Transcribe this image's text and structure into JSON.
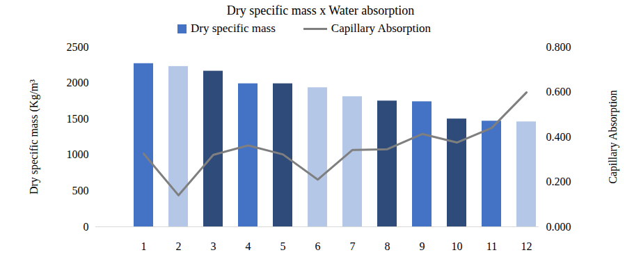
{
  "chart_data": {
    "type": "bar",
    "title": "Dry specific mass x Water absorption",
    "categories": [
      null,
      "1",
      "2",
      "3",
      "4",
      "5",
      "6",
      "7",
      "8",
      "9",
      "10",
      "11",
      "12"
    ],
    "series": [
      {
        "name": "Dry specific mass",
        "type": "bar",
        "color": "#4472C4",
        "colors": [
          null,
          "#4472C4",
          "#B4C7E7",
          "#2E4B7A",
          "#4472C4",
          "#2E4B7A",
          "#B4C7E7",
          "#B4C7E7",
          "#2E4B7A",
          "#4472C4",
          "#2E4B7A",
          "#4472C4",
          "#B4C7E7"
        ],
        "values": [
          null,
          2270,
          2230,
          2165,
          1990,
          1990,
          1935,
          1810,
          1750,
          1740,
          1500,
          1470,
          1460
        ]
      },
      {
        "name": "Capillary Absorption",
        "type": "line",
        "axis": "y2",
        "color": "#7F7F7F",
        "values": [
          null,
          0.325,
          0.14,
          0.32,
          0.362,
          0.322,
          0.21,
          0.342,
          0.345,
          0.413,
          0.375,
          0.44,
          0.598
        ]
      }
    ],
    "y_label": "Dry specific mass (Kg/m³",
    "y2_label": "Capillary Absorption",
    "ylim": [
      0,
      2500
    ],
    "yticks": [
      0,
      500,
      1000,
      1500,
      2000,
      2500
    ],
    "y2lim": [
      0,
      0.8
    ],
    "y2ticks": [
      {
        "value": 0,
        "label": "0.000"
      },
      {
        "value": 0.2,
        "label": "0.200"
      },
      {
        "value": 0.4,
        "label": "0.400"
      },
      {
        "value": 0.6,
        "label": "0.600"
      },
      {
        "value": 0.8,
        "label": "0.800"
      }
    ],
    "grid": false,
    "legend": "top"
  }
}
